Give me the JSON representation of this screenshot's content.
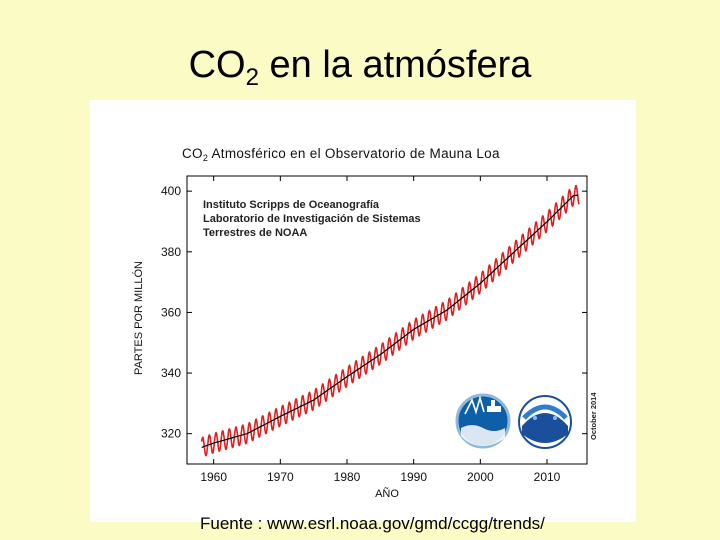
{
  "slide": {
    "title_main": "CO",
    "title_sub": "2",
    "title_rest": " en la atmósfera",
    "source": "Fuente : www.esrl.noaa.gov/gmd/ccgg/trends/"
  },
  "chart_data": {
    "type": "line",
    "title_prefix": "CO",
    "title_sub": "2",
    "title_rest": " Atmosférico en el Observatorio de Mauna Loa",
    "xlabel": "AÑO",
    "ylabel": "PARTES POR MILLÓN",
    "xlim": [
      1956,
      2016
    ],
    "ylim": [
      310,
      405
    ],
    "x_ticks": [
      1960,
      1970,
      1980,
      1990,
      2000,
      2010
    ],
    "y_ticks": [
      320,
      340,
      360,
      380,
      400
    ],
    "annotation_lines": [
      "Instituto Scripps de Oceanografía",
      "Laboratorio de Investigación de Sistemas",
      "Terrestres de NOAA"
    ],
    "date_note": "October 2014",
    "series": [
      {
        "color": "#e02020",
        "seasonal_amplitude": 3.2,
        "x": [
          1958,
          1960,
          1965,
          1970,
          1975,
          1980,
          1985,
          1990,
          1995,
          2000,
          2005,
          2010,
          2014
        ],
        "y": [
          315.3,
          316.9,
          320.0,
          325.7,
          331.1,
          338.8,
          346.1,
          354.4,
          360.8,
          369.6,
          379.8,
          389.9,
          398.6
        ]
      },
      {
        "color": "#000000",
        "x": [
          1958,
          1960,
          1965,
          1970,
          1975,
          1980,
          1985,
          1990,
          1995,
          2000,
          2005,
          2010,
          2014
        ],
        "y": [
          315.3,
          316.9,
          320.0,
          325.7,
          331.1,
          338.8,
          346.1,
          354.4,
          360.8,
          369.6,
          379.8,
          389.9,
          398.6
        ]
      }
    ]
  }
}
